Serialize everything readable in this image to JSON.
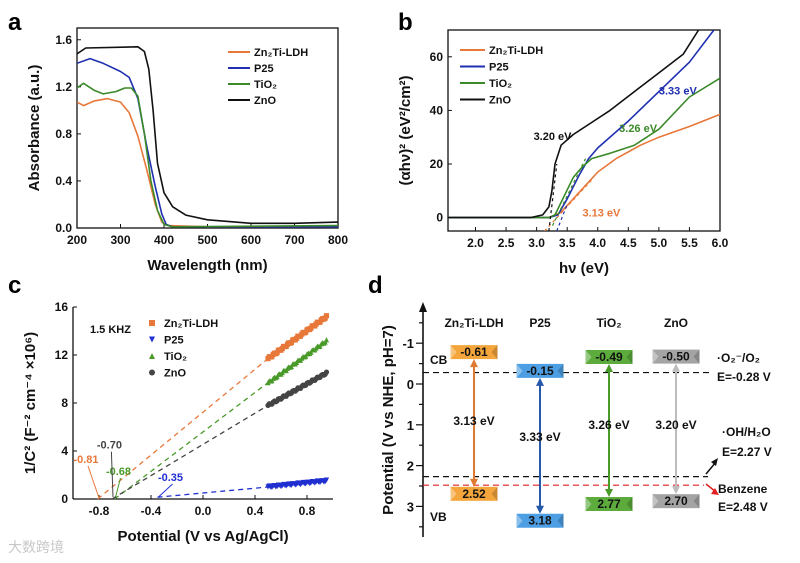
{
  "panels": {
    "a": "a",
    "b": "b",
    "c": "c",
    "d": "d"
  },
  "watermark": "大数跨境",
  "chart_data": [
    {
      "id": "a",
      "type": "line",
      "xlabel": "Wavelength (nm)",
      "ylabel": "Absorbance (a.u.)",
      "xlim": [
        200,
        800
      ],
      "ylim": [
        0,
        1.7
      ],
      "xticks": [
        200,
        300,
        400,
        500,
        600,
        700,
        800
      ],
      "xtick_labels": [
        "200",
        "300",
        "400",
        "500",
        "600",
        "700",
        "800"
      ],
      "yticks": [
        0,
        0.4,
        0.8,
        1.2,
        1.6
      ],
      "ytick_labels": [
        "0.0",
        "0.4",
        "0.8",
        "1.2",
        "1.6"
      ],
      "legend_position": "top-right",
      "series": [
        {
          "name": "Zn₂Ti-LDH",
          "color": "#e8783a",
          "x": [
            200,
            215,
            240,
            270,
            300,
            320,
            340,
            360,
            380,
            395,
            410,
            500,
            800
          ],
          "y": [
            1.07,
            1.04,
            1.08,
            1.1,
            1.07,
            0.98,
            0.78,
            0.5,
            0.2,
            0.05,
            0.02,
            0.01,
            0.01
          ]
        },
        {
          "name": "P25",
          "color": "#1f2fb0",
          "x": [
            200,
            230,
            260,
            300,
            320,
            340,
            360,
            380,
            395,
            405,
            420,
            800
          ],
          "y": [
            1.4,
            1.44,
            1.4,
            1.33,
            1.28,
            1.1,
            0.7,
            0.35,
            0.12,
            0.03,
            0.01,
            0.01
          ]
        },
        {
          "name": "TiO₂",
          "color": "#3a8a2a",
          "x": [
            200,
            215,
            240,
            260,
            290,
            310,
            325,
            340,
            355,
            370,
            385,
            400,
            420,
            800
          ],
          "y": [
            1.19,
            1.23,
            1.17,
            1.14,
            1.16,
            1.19,
            1.19,
            1.12,
            0.8,
            0.4,
            0.15,
            0.03,
            0.01,
            0.02
          ]
        },
        {
          "name": "ZnO",
          "color": "#111111",
          "x": [
            200,
            220,
            340,
            355,
            365,
            375,
            385,
            400,
            420,
            450,
            500,
            600,
            700,
            800
          ],
          "y": [
            1.48,
            1.53,
            1.54,
            1.5,
            1.35,
            1.0,
            0.55,
            0.3,
            0.18,
            0.11,
            0.07,
            0.04,
            0.04,
            0.05
          ]
        }
      ]
    },
    {
      "id": "b",
      "type": "line",
      "xlabel": "hν (eV)",
      "ylabel": "(αhν)² (eV²/cm²)",
      "xlim": [
        1.55,
        6.0
      ],
      "ylim": [
        -5,
        70
      ],
      "xticks": [
        2.0,
        2.5,
        3.0,
        3.5,
        4.0,
        4.5,
        5.0,
        5.5,
        6.0
      ],
      "xtick_labels": [
        "2.0",
        "2.5",
        "3.0",
        "3.5",
        "4.0",
        "4.5",
        "5.0",
        "5.5",
        "6.0"
      ],
      "yticks": [
        0,
        20,
        40,
        60
      ],
      "ytick_labels": [
        "0",
        "20",
        "40",
        "60"
      ],
      "legend_position": "top-left",
      "series": [
        {
          "name": "Zn₂Ti-LDH",
          "color": "#e8783a",
          "x": [
            1.55,
            3.2,
            3.4,
            3.6,
            3.8,
            4.0,
            4.3,
            4.7,
            5.0,
            5.5,
            6.0
          ],
          "y": [
            0,
            0,
            2,
            7,
            12,
            17,
            22,
            27,
            30,
            34,
            38.5
          ],
          "tangent": [
            [
              3.13,
              -5
            ],
            [
              3.9,
              14
            ]
          ],
          "annotation": {
            "text": "3.13 eV",
            "x": 3.75,
            "y": 0.5
          }
        },
        {
          "name": "P25",
          "color": "#1f2fb0",
          "x": [
            1.55,
            3.2,
            3.35,
            3.5,
            3.7,
            3.85,
            4.0,
            4.5,
            5.0,
            5.5,
            5.9
          ],
          "y": [
            0,
            0,
            1,
            7,
            16,
            22,
            26,
            36,
            47,
            58,
            70
          ],
          "tangent": [
            [
              3.33,
              -5
            ],
            [
              3.5,
              5
            ]
          ],
          "annotation": {
            "text": "3.33 eV",
            "x": 5.0,
            "y": 46
          }
        },
        {
          "name": "TiO₂",
          "color": "#3a8a2a",
          "x": [
            1.55,
            3.2,
            3.3,
            3.45,
            3.6,
            3.75,
            3.9,
            4.2,
            4.6,
            5.0,
            5.5,
            6.0
          ],
          "y": [
            0,
            0,
            1,
            8,
            15,
            19,
            22,
            24,
            27,
            33,
            45,
            52
          ],
          "tangent": [
            [
              3.26,
              -3
            ],
            [
              3.8,
              22
            ]
          ],
          "annotation": {
            "text": "3.26 eV",
            "x": 4.35,
            "y": 32
          }
        },
        {
          "name": "ZnO",
          "color": "#111111",
          "x": [
            1.55,
            2.9,
            3.1,
            3.2,
            3.25,
            3.3,
            3.4,
            3.6,
            3.8,
            4.2,
            4.6,
            5.0,
            5.4,
            5.65
          ],
          "y": [
            0,
            0,
            1,
            4,
            10,
            20,
            27,
            31,
            34,
            40,
            47,
            54,
            61,
            70
          ],
          "tangent": [
            [
              3.2,
              -5
            ],
            [
              3.33,
              20
            ]
          ],
          "annotation": {
            "text": "3.20 eV",
            "x": 2.95,
            "y": 29
          }
        }
      ]
    },
    {
      "id": "c",
      "type": "scatter",
      "xlabel": "Potential (V vs Ag/AgCl)",
      "ylabel": "1/C² (F⁻² cm⁻⁴ ×10⁶)",
      "xlim": [
        -1.0,
        1.0
      ],
      "ylim": [
        0,
        16
      ],
      "xticks": [
        -0.8,
        -0.4,
        0.0,
        0.4,
        0.8
      ],
      "xtick_labels": [
        "-0.8",
        "-0.4",
        "0.0",
        "0.4",
        "0.8"
      ],
      "yticks": [
        0,
        4,
        8,
        12,
        16
      ],
      "ytick_labels": [
        "0",
        "4",
        "8",
        "12",
        "16"
      ],
      "note": "1.5 KHZ",
      "legend_position": "top-left",
      "series": [
        {
          "name": "Zn₂Ti-LDH",
          "color": "#e8783a",
          "marker": "square",
          "x_range": [
            0.5,
            0.95
          ],
          "y_range": [
            11.7,
            15.2
          ],
          "intercept": -0.81,
          "annotation": {
            "text": "-0.81",
            "x": -0.9,
            "y": 3.0
          }
        },
        {
          "name": "P25",
          "color": "#1f2fd0",
          "marker": "triangle-down",
          "x_range": [
            0.5,
            0.95
          ],
          "y_range": [
            1.0,
            1.5
          ],
          "intercept": -0.35,
          "annotation": {
            "text": "-0.35",
            "x": -0.25,
            "y": 1.5
          }
        },
        {
          "name": "TiO₂",
          "color": "#4a9a2a",
          "marker": "triangle-up",
          "x_range": [
            0.5,
            0.95
          ],
          "y_range": [
            9.7,
            13.2
          ],
          "intercept": -0.68,
          "annotation": {
            "text": "-0.68",
            "x": -0.65,
            "y": 2.0
          }
        },
        {
          "name": "ZnO",
          "color": "#444444",
          "marker": "circle",
          "x_range": [
            0.5,
            0.95
          ],
          "y_range": [
            7.8,
            10.5
          ],
          "intercept": -0.7,
          "annotation": {
            "text": "-0.70",
            "x": -0.72,
            "y": 4.2
          }
        }
      ]
    },
    {
      "id": "d",
      "type": "band-diagram",
      "ylabel": "Potential (V vs NHE, pH=7)",
      "ylim": [
        -1.8,
        3.7
      ],
      "yticks": [
        -1,
        0,
        1,
        2,
        3
      ],
      "ytick_labels": [
        "-1",
        "0",
        "1",
        "2",
        "3"
      ],
      "cb_label": "CB",
      "vb_label": "VB",
      "materials": [
        {
          "name": "Zn₂Ti-LDH",
          "cb": -0.61,
          "vb": 2.52,
          "cb_label": "-0.61",
          "vb_label": "2.52",
          "gap": "3.13 eV",
          "color": "#f4a63c",
          "arrow_color": "#e07a30",
          "name_color": "#e07a30"
        },
        {
          "name": "P25",
          "cb": -0.15,
          "vb": 3.18,
          "cb_label": "-0.15",
          "vb_label": "3.18",
          "gap": "3.33 eV",
          "color": "#4d9ee2",
          "arrow_color": "#2458a8",
          "name_color": "#2060b0"
        },
        {
          "name": "TiO₂",
          "cb": -0.49,
          "vb": 2.77,
          "cb_label": "-0.49",
          "vb_label": "2.77",
          "gap": "3.26 eV",
          "color": "#5cab3c",
          "arrow_color": "#4a9a2a",
          "name_color": "#3a8a2a"
        },
        {
          "name": "ZnO",
          "cb": -0.5,
          "vb": 2.7,
          "cb_label": "-0.50",
          "vb_label": "2.70",
          "gap": "3.20 eV",
          "color": "#a4a4a4",
          "arrow_color": "#bdbdbd",
          "name_color": "#222222"
        }
      ],
      "reference_levels": [
        {
          "species": "·O₂⁻/O₂",
          "label": "E=-0.28 V",
          "value": -0.28,
          "color": "#111111"
        },
        {
          "species": "·OH/H₂O",
          "label": "E=2.27 V",
          "value": 2.27,
          "color": "#111111"
        },
        {
          "species": "Benzene",
          "label": "E=2.48 V",
          "value": 2.48,
          "color": "#e02020"
        }
      ]
    }
  ]
}
